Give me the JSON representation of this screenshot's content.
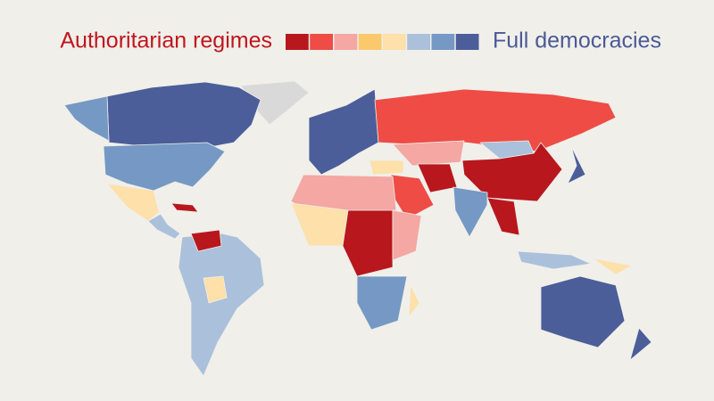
{
  "legend": {
    "left_label": "Authoritarian regimes",
    "right_label": "Full democracies",
    "colors": [
      "#b8171d",
      "#ee4c45",
      "#f4a7a3",
      "#fbc86c",
      "#fde0aa",
      "#abc0da",
      "#7599c4",
      "#4b5e99"
    ]
  }
}
